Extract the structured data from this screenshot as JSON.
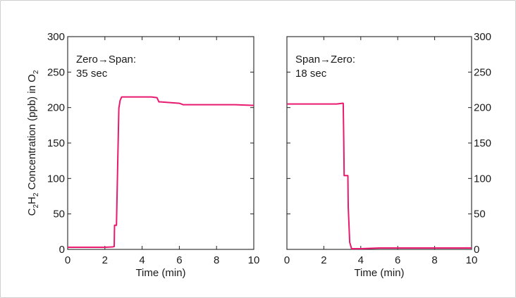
{
  "chart_data": [
    {
      "type": "line",
      "xlabel": "Time (min)",
      "ylabel": {
        "pre": "C",
        "sub1": "2",
        "mid": "H",
        "sub2": "2",
        "post": " Concentration (ppb) in O",
        "sub3": "2"
      },
      "xlim": [
        0,
        10
      ],
      "ylim": [
        0,
        300
      ],
      "xticks": [
        0,
        2,
        4,
        6,
        8,
        10
      ],
      "yticks": [
        0,
        50,
        100,
        150,
        200,
        250,
        300
      ],
      "yaxis_side": "left",
      "annotation": [
        "Zero→Span:",
        "35 sec"
      ],
      "color": "#e8196e",
      "series": [
        {
          "x": [
            0,
            1.0,
            2.0,
            2.4,
            2.5,
            2.52,
            2.62,
            2.75,
            2.82,
            2.9,
            3.0,
            3.5,
            4.0,
            4.5,
            4.8,
            4.9,
            5.0,
            5.5,
            6.0,
            6.2,
            6.5,
            7.0,
            8.0,
            9.0,
            10.0
          ],
          "y": [
            3,
            3,
            3,
            3.5,
            4,
            34,
            34,
            199,
            210,
            215,
            215,
            215,
            215,
            215,
            214,
            208,
            208,
            207,
            206,
            204,
            204,
            204,
            204,
            204,
            203
          ]
        }
      ]
    },
    {
      "type": "line",
      "xlabel": "Time (min)",
      "ylabel": "",
      "xlim": [
        0,
        10
      ],
      "ylim": [
        0,
        300
      ],
      "xticks": [
        0,
        2,
        4,
        6,
        8,
        10
      ],
      "yticks": [
        0,
        50,
        100,
        150,
        200,
        250,
        300
      ],
      "yaxis_side": "right",
      "annotation": [
        "Span→Zero:",
        "18 sec"
      ],
      "color": "#e8196e",
      "series": [
        {
          "x": [
            0,
            1.0,
            2.0,
            2.7,
            3.0,
            3.05,
            3.08,
            3.1,
            3.3,
            3.32,
            3.4,
            3.5,
            4.0,
            5.0,
            6.0,
            7.0,
            8.0,
            9.0,
            10.0
          ],
          "y": [
            205,
            205,
            205,
            205,
            206,
            206,
            150,
            104,
            104,
            60,
            10,
            1,
            1,
            2,
            2,
            2,
            2,
            2,
            2
          ]
        }
      ]
    }
  ]
}
